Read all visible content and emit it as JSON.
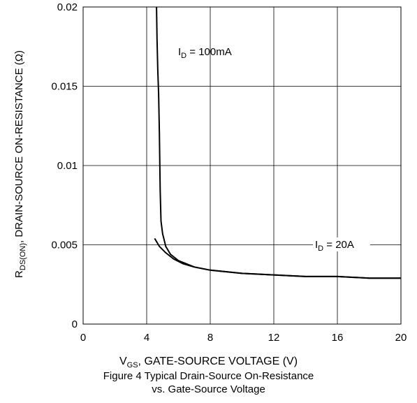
{
  "chart_data": {
    "type": "line",
    "xlim": [
      0,
      20
    ],
    "ylim": [
      0,
      0.02
    ],
    "x_ticks": [
      "0",
      "4",
      "8",
      "12",
      "16",
      "20"
    ],
    "y_ticks": [
      "0",
      "0.005",
      "0.01",
      "0.015",
      "0.02"
    ],
    "grid": true,
    "xlabel": {
      "prefix": "V",
      "sub": "GS",
      "rest": ", GATE-SOURCE VOLTAGE (V)"
    },
    "ylabel": {
      "prefix": "R",
      "sub": "DS(ON)",
      "rest": ", DRAIN-SOURCE ON-RESISTANCE (Ω)"
    },
    "caption": [
      "Figure 4 Typical Drain-Source On-Resistance",
      "vs. Gate-Source Voltage"
    ],
    "series": [
      {
        "name_prefix": "I",
        "name_sub": "D",
        "name_rest": " = 100mA",
        "x": [
          4.62,
          4.65,
          4.7,
          4.75,
          4.8,
          4.85,
          4.9,
          5.0,
          5.2,
          5.5,
          6.0,
          7.0,
          8.0,
          10.0,
          12.0,
          14.0,
          16.0,
          18.0,
          20.0
        ],
        "y": [
          0.02,
          0.018,
          0.016,
          0.0145,
          0.012,
          0.0085,
          0.0065,
          0.0057,
          0.0049,
          0.0044,
          0.004,
          0.0036,
          0.0034,
          0.0032,
          0.0031,
          0.003,
          0.003,
          0.0029,
          0.0029
        ]
      },
      {
        "name_prefix": "I",
        "name_sub": "D",
        "name_rest": " = 20A",
        "x": [
          4.5,
          4.8,
          5.2,
          5.7,
          6.3,
          7.0,
          8.0,
          10.0,
          12.0,
          14.0,
          16.0,
          18.0,
          20.0
        ],
        "y": [
          0.0054,
          0.0049,
          0.0045,
          0.0041,
          0.0038,
          0.0036,
          0.0034,
          0.0032,
          0.0031,
          0.003,
          0.003,
          0.0029,
          0.0029
        ]
      }
    ]
  }
}
